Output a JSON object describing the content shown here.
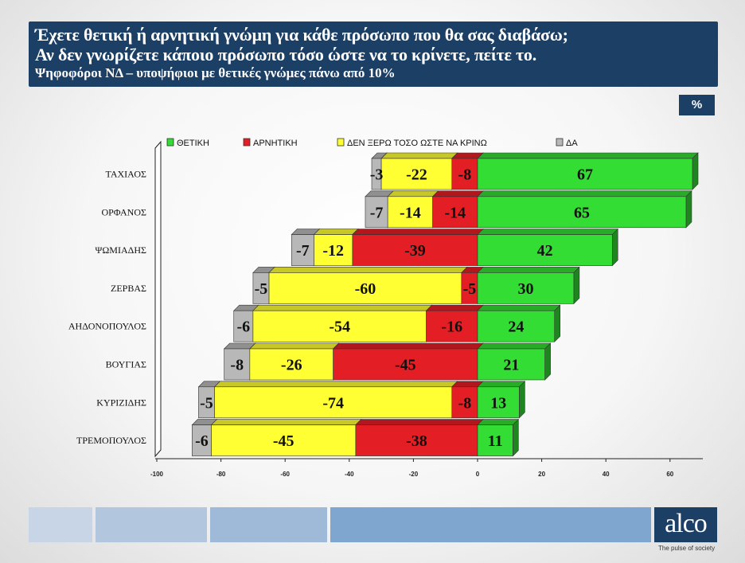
{
  "header": {
    "question_line1": "Έχετε θετική ή αρνητική γνώμη για κάθε πρόσωπο που θα σας διαβάσω;",
    "question_line2": "Αν δεν γνωρίζετε κάποιο πρόσωπο τόσο ώστε να το κρίνετε, πείτε το.",
    "subtitle": "Ψηφοφόροι ΝΔ – υποψήφιοι με θετικές γνώμες πάνω από 10%"
  },
  "unit_badge": "%",
  "brand": {
    "logo_text": "alco",
    "tagline": "The pulse of society"
  },
  "colors": {
    "positive": "#33dd33",
    "negative": "#e31e24",
    "dont_know": "#ffff33",
    "no_answer": "#b8b8b8",
    "header_bg": "#1c3f66"
  },
  "chart_data": {
    "type": "bar",
    "orientation": "horizontal",
    "stacking": "diverging",
    "categories": [
      "ΤΑΧΙΑΟΣ",
      "ΟΡΦΑΝΟΣ",
      "ΨΩΜΙΑΔΗΣ",
      "ΖΕΡΒΑΣ",
      "ΑΗΔΟΝΟΠΟΥΛΟΣ",
      "ΒΟΥΓΙΑΣ",
      "ΚΥΡΙΖΙΔΗΣ",
      "ΤΡΕΜΟΠΟΥΛΟΣ"
    ],
    "series": [
      {
        "name": "ΘΕΤΙΚΗ",
        "color": "#33dd33",
        "values": [
          67,
          65,
          42,
          30,
          24,
          21,
          13,
          11
        ]
      },
      {
        "name": "ΑΡΝΗΤΙΚΗ",
        "color": "#e31e24",
        "values": [
          -8,
          -14,
          -39,
          -5,
          -16,
          -45,
          -8,
          -38
        ]
      },
      {
        "name": "ΔΕΝ ΞΕΡΩ ΤΟΣΟ ΩΣΤΕ ΝΑ ΚΡΙΝΩ",
        "color": "#ffff33",
        "values": [
          -22,
          -14,
          -12,
          -60,
          -54,
          -26,
          -74,
          -45
        ]
      },
      {
        "name": "ΔΑ",
        "color": "#b8b8b8",
        "values": [
          -3,
          -7,
          -7,
          -5,
          -6,
          -8,
          -5,
          -6
        ]
      }
    ],
    "xlim": [
      -100,
      70
    ],
    "xticks": [
      -100,
      -80,
      -60,
      -40,
      -20,
      0,
      20,
      40,
      60
    ],
    "legend_position": "top",
    "grid": false
  }
}
